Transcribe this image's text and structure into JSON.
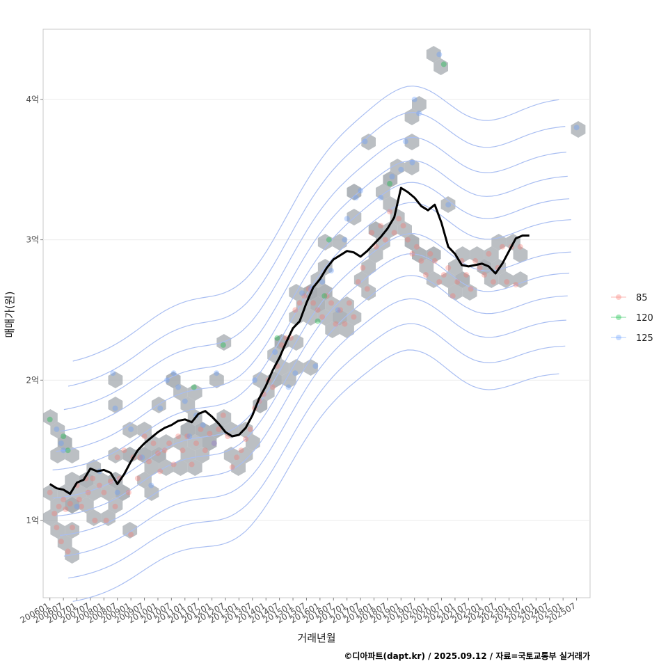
{
  "chart_data": {
    "type": "scatter",
    "xlabel": "거래년월",
    "ylabel": "매매가(원)",
    "caption": "©디아파트(dapt.kr) / 2025.09.12 / 자료=국토교통부 실거래가",
    "x_ticks": [
      "200601",
      "200607",
      "200701",
      "200707",
      "200801",
      "200807",
      "200901",
      "200907",
      "201001",
      "201007",
      "201101",
      "201107",
      "201201",
      "201207",
      "201301",
      "201307",
      "201401",
      "201407",
      "201501",
      "201507",
      "201601",
      "201607",
      "201701",
      "201707",
      "201801",
      "201807",
      "201901",
      "201907",
      "202001",
      "202007",
      "202101",
      "202107",
      "202201",
      "202207",
      "202301",
      "202307",
      "202401",
      "202407",
      "202501",
      "202507"
    ],
    "y_ticks": [
      {
        "value": 1,
        "label": "1억"
      },
      {
        "value": 2,
        "label": "2억"
      },
      {
        "value": 3,
        "label": "3억"
      },
      {
        "value": 4,
        "label": "4억"
      }
    ],
    "xlim": [
      "2005-10",
      "2026-01"
    ],
    "ylim": [
      0.45,
      4.5
    ],
    "y_unit": "억원",
    "grid": true,
    "legend": {
      "placement": "right",
      "entries": [
        {
          "name": "85",
          "color": "#f8766d"
        },
        {
          "name": "120",
          "color": "#00ba38"
        },
        {
          "name": "125",
          "color": "#619cff"
        }
      ]
    },
    "layers": [
      "hexbin",
      "density-contours",
      "points",
      "moving-average-line"
    ],
    "hexbin_fill": "#9aa0a6",
    "contour_color": "#a9bef2",
    "trend_line_color": "#000000",
    "trend_line": [
      [
        "2006-01",
        1.26
      ],
      [
        "2006-04",
        1.23
      ],
      [
        "2006-07",
        1.22
      ],
      [
        "2006-10",
        1.19
      ],
      [
        "2007-01",
        1.27
      ],
      [
        "2007-04",
        1.29
      ],
      [
        "2007-07",
        1.37
      ],
      [
        "2007-10",
        1.35
      ],
      [
        "2008-01",
        1.36
      ],
      [
        "2008-04",
        1.34
      ],
      [
        "2008-07",
        1.26
      ],
      [
        "2008-10",
        1.33
      ],
      [
        "2009-01",
        1.42
      ],
      [
        "2009-04",
        1.5
      ],
      [
        "2009-07",
        1.55
      ],
      [
        "2009-10",
        1.59
      ],
      [
        "2010-01",
        1.63
      ],
      [
        "2010-04",
        1.66
      ],
      [
        "2010-07",
        1.68
      ],
      [
        "2010-10",
        1.71
      ],
      [
        "2011-01",
        1.72
      ],
      [
        "2011-04",
        1.7
      ],
      [
        "2011-07",
        1.76
      ],
      [
        "2011-10",
        1.78
      ],
      [
        "2012-01",
        1.74
      ],
      [
        "2012-04",
        1.69
      ],
      [
        "2012-07",
        1.63
      ],
      [
        "2012-10",
        1.6
      ],
      [
        "2013-01",
        1.61
      ],
      [
        "2013-04",
        1.66
      ],
      [
        "2013-07",
        1.75
      ],
      [
        "2013-10",
        1.87
      ],
      [
        "2014-01",
        1.96
      ],
      [
        "2014-04",
        2.07
      ],
      [
        "2014-07",
        2.16
      ],
      [
        "2014-10",
        2.27
      ],
      [
        "2015-01",
        2.37
      ],
      [
        "2015-04",
        2.42
      ],
      [
        "2015-07",
        2.55
      ],
      [
        "2015-10",
        2.66
      ],
      [
        "2016-01",
        2.72
      ],
      [
        "2016-04",
        2.8
      ],
      [
        "2016-07",
        2.86
      ],
      [
        "2016-10",
        2.89
      ],
      [
        "2017-01",
        2.92
      ],
      [
        "2017-04",
        2.91
      ],
      [
        "2017-07",
        2.88
      ],
      [
        "2017-10",
        2.92
      ],
      [
        "2018-01",
        2.97
      ],
      [
        "2018-04",
        3.02
      ],
      [
        "2018-07",
        3.08
      ],
      [
        "2018-10",
        3.16
      ],
      [
        "2019-01",
        3.37
      ],
      [
        "2019-04",
        3.34
      ],
      [
        "2019-07",
        3.3
      ],
      [
        "2019-10",
        3.24
      ],
      [
        "2020-01",
        3.21
      ],
      [
        "2020-04",
        3.25
      ],
      [
        "2020-07",
        3.12
      ],
      [
        "2020-10",
        2.95
      ],
      [
        "2021-01",
        2.9
      ],
      [
        "2021-04",
        2.82
      ],
      [
        "2021-07",
        2.81
      ],
      [
        "2021-10",
        2.82
      ],
      [
        "2022-01",
        2.83
      ],
      [
        "2022-04",
        2.81
      ],
      [
        "2022-07",
        2.76
      ],
      [
        "2022-10",
        2.83
      ],
      [
        "2023-01",
        2.92
      ],
      [
        "2023-04",
        3.01
      ],
      [
        "2023-07",
        3.03
      ],
      [
        "2023-10",
        3.03
      ]
    ],
    "points": {
      "85": [
        [
          "2006-01",
          1.2
        ],
        [
          "2006-03",
          1.05
        ],
        [
          "2006-04",
          0.95
        ],
        [
          "2006-05",
          1.1
        ],
        [
          "2006-06",
          0.85
        ],
        [
          "2006-07",
          1.15
        ],
        [
          "2006-08",
          1.08
        ],
        [
          "2006-09",
          0.78
        ],
        [
          "2006-10",
          1.12
        ],
        [
          "2006-11",
          0.95
        ],
        [
          "2007-01",
          1.25
        ],
        [
          "2007-02",
          1.15
        ],
        [
          "2007-03",
          1.1
        ],
        [
          "2007-05",
          1.3
        ],
        [
          "2007-06",
          1.2
        ],
        [
          "2007-08",
          1.3
        ],
        [
          "2007-09",
          1.0
        ],
        [
          "2007-11",
          1.25
        ],
        [
          "2008-01",
          1.2
        ],
        [
          "2008-02",
          1.0
        ],
        [
          "2008-04",
          1.28
        ],
        [
          "2008-06",
          1.1
        ],
        [
          "2008-07",
          1.45
        ],
        [
          "2008-08",
          1.3
        ],
        [
          "2008-10",
          1.5
        ],
        [
          "2008-12",
          1.2
        ],
        [
          "2009-01",
          0.9
        ],
        [
          "2009-02",
          1.45
        ],
        [
          "2009-04",
          1.3
        ],
        [
          "2009-05",
          1.45
        ],
        [
          "2009-07",
          1.6
        ],
        [
          "2009-09",
          1.42
        ],
        [
          "2009-11",
          1.55
        ],
        [
          "2010-01",
          1.48
        ],
        [
          "2010-02",
          1.35
        ],
        [
          "2010-04",
          1.5
        ],
        [
          "2010-06",
          1.55
        ],
        [
          "2010-08",
          1.4
        ],
        [
          "2010-10",
          1.6
        ],
        [
          "2010-12",
          1.5
        ],
        [
          "2011-02",
          1.6
        ],
        [
          "2011-04",
          1.4
        ],
        [
          "2011-06",
          1.55
        ],
        [
          "2011-08",
          1.65
        ],
        [
          "2011-10",
          1.5
        ],
        [
          "2011-12",
          1.62
        ],
        [
          "2012-02",
          1.55
        ],
        [
          "2012-04",
          1.65
        ],
        [
          "2012-06",
          1.75
        ],
        [
          "2012-08",
          1.6
        ],
        [
          "2012-10",
          1.38
        ],
        [
          "2012-12",
          1.45
        ],
        [
          "2013-02",
          1.5
        ],
        [
          "2013-04",
          1.58
        ],
        [
          "2013-06",
          1.65
        ],
        [
          "2013-08",
          1.8
        ],
        [
          "2013-10",
          1.85
        ],
        [
          "2013-12",
          1.9
        ],
        [
          "2014-02",
          2.0
        ],
        [
          "2014-04",
          1.95
        ],
        [
          "2014-06",
          2.1
        ],
        [
          "2014-08",
          2.25
        ],
        [
          "2014-10",
          2.3
        ],
        [
          "2014-12",
          2.3
        ],
        [
          "2015-02",
          2.5
        ],
        [
          "2015-04",
          2.55
        ],
        [
          "2015-06",
          2.6
        ],
        [
          "2015-08",
          2.65
        ],
        [
          "2015-10",
          2.55
        ],
        [
          "2015-12",
          2.5
        ],
        [
          "2016-02",
          2.45
        ],
        [
          "2016-04",
          2.6
        ],
        [
          "2016-06",
          2.55
        ],
        [
          "2016-08",
          2.4
        ],
        [
          "2016-10",
          2.5
        ],
        [
          "2016-12",
          2.4
        ],
        [
          "2017-02",
          2.55
        ],
        [
          "2017-04",
          2.45
        ],
        [
          "2017-06",
          2.7
        ],
        [
          "2017-08",
          2.8
        ],
        [
          "2017-10",
          2.65
        ],
        [
          "2017-12",
          3.05
        ],
        [
          "2018-02",
          2.95
        ],
        [
          "2018-04",
          3.1
        ],
        [
          "2018-06",
          3.0
        ],
        [
          "2018-08",
          3.2
        ],
        [
          "2018-10",
          3.05
        ],
        [
          "2018-12",
          3.15
        ],
        [
          "2019-02",
          3.1
        ],
        [
          "2019-04",
          3.0
        ],
        [
          "2019-06",
          2.9
        ],
        [
          "2019-08",
          2.95
        ],
        [
          "2019-10",
          2.85
        ],
        [
          "2019-12",
          2.75
        ],
        [
          "2020-02",
          2.9
        ],
        [
          "2020-04",
          2.85
        ],
        [
          "2020-06",
          2.7
        ],
        [
          "2020-08",
          2.75
        ],
        [
          "2020-10",
          2.8
        ],
        [
          "2020-12",
          2.6
        ],
        [
          "2021-02",
          2.7
        ],
        [
          "2021-04",
          2.85
        ],
        [
          "2021-06",
          2.75
        ],
        [
          "2021-08",
          2.65
        ],
        [
          "2021-10",
          2.85
        ],
        [
          "2021-12",
          2.8
        ],
        [
          "2022-02",
          2.75
        ],
        [
          "2022-04",
          2.9
        ],
        [
          "2022-06",
          2.7
        ],
        [
          "2022-08",
          2.8
        ],
        [
          "2022-10",
          2.95
        ],
        [
          "2022-12",
          2.7
        ],
        [
          "2023-02",
          2.95
        ],
        [
          "2023-04",
          2.68
        ],
        [
          "2023-06",
          2.95
        ]
      ],
      "120": [
        [
          "2006-01",
          1.72
        ],
        [
          "2006-07",
          1.6
        ],
        [
          "2006-09",
          1.5
        ],
        [
          "2011-05",
          1.95
        ],
        [
          "2012-06",
          2.25
        ],
        [
          "2014-06",
          2.3
        ],
        [
          "2015-12",
          2.42
        ],
        [
          "2016-03",
          2.6
        ],
        [
          "2016-05",
          3.0
        ],
        [
          "2018-08",
          3.4
        ],
        [
          "2020-08",
          4.25
        ]
      ],
      "125": [
        [
          "2006-04",
          1.65
        ],
        [
          "2006-06",
          1.55
        ],
        [
          "2006-07",
          1.5
        ],
        [
          "2007-01",
          1.1
        ],
        [
          "2007-11",
          1.35
        ],
        [
          "2008-05",
          2.05
        ],
        [
          "2008-06",
          1.8
        ],
        [
          "2008-07",
          1.2
        ],
        [
          "2009-01",
          1.65
        ],
        [
          "2009-06",
          1.45
        ],
        [
          "2009-10",
          1.25
        ],
        [
          "2010-02",
          1.8
        ],
        [
          "2010-05",
          2.0
        ],
        [
          "2010-08",
          2.05
        ],
        [
          "2010-10",
          1.95
        ],
        [
          "2011-01",
          1.85
        ],
        [
          "2011-03",
          1.6
        ],
        [
          "2011-06",
          1.75
        ],
        [
          "2011-09",
          1.68
        ],
        [
          "2012-02",
          1.55
        ],
        [
          "2012-03",
          2.05
        ],
        [
          "2013-08",
          2.0
        ],
        [
          "2014-05",
          2.2
        ],
        [
          "2014-11",
          1.95
        ],
        [
          "2015-02",
          2.05
        ],
        [
          "2015-05",
          2.62
        ],
        [
          "2015-09",
          2.65
        ],
        [
          "2015-11",
          2.1
        ],
        [
          "2016-02",
          2.7
        ],
        [
          "2016-06",
          2.78
        ],
        [
          "2016-09",
          2.5
        ],
        [
          "2016-12",
          3.0
        ],
        [
          "2017-01",
          3.15
        ],
        [
          "2017-05",
          3.3
        ],
        [
          "2017-07",
          3.35
        ],
        [
          "2017-09",
          3.7
        ],
        [
          "2018-04",
          3.3
        ],
        [
          "2018-09",
          3.45
        ],
        [
          "2019-01",
          3.5
        ],
        [
          "2019-03",
          3.7
        ],
        [
          "2019-06",
          3.55
        ],
        [
          "2019-07",
          4.0
        ],
        [
          "2019-09",
          3.9
        ],
        [
          "2020-06",
          4.32
        ],
        [
          "2020-10",
          3.25
        ],
        [
          "2025-07",
          3.8
        ]
      ]
    }
  }
}
